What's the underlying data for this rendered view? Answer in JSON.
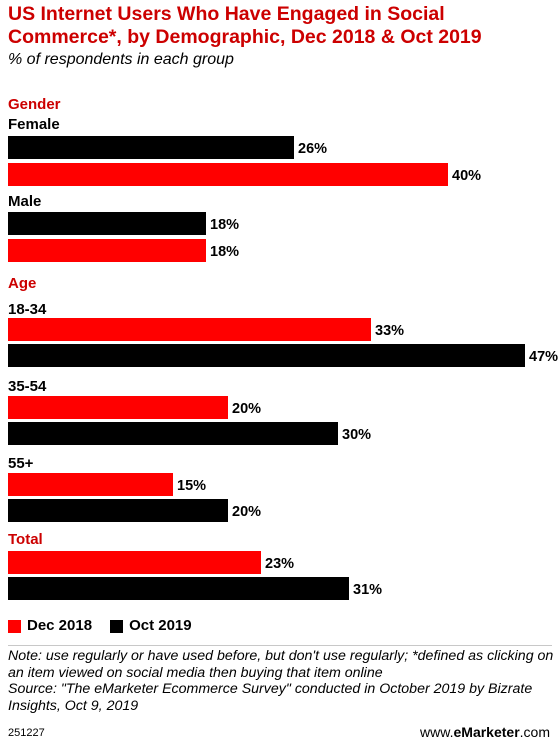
{
  "chart_data": {
    "type": "bar",
    "orientation": "horizontal",
    "title": "US Internet Users Who Have Engaged in Social Commerce*, by Demographic, Dec 2018 & Oct 2019",
    "subtitle": "% of respondents in each group",
    "xlim": [
      0,
      47
    ],
    "grid": false,
    "legend_position": "bottom-left",
    "groups": [
      {
        "heading": "Gender",
        "categories": [
          {
            "label": "Female",
            "bars": [
              {
                "series": "Oct 2019",
                "value": 26,
                "label": "26%"
              },
              {
                "series": "Dec 2018",
                "value": 40,
                "label": "40%"
              }
            ]
          },
          {
            "label": "Male",
            "bars": [
              {
                "series": "Oct 2019",
                "value": 18,
                "label": "18%"
              },
              {
                "series": "Dec 2018",
                "value": 18,
                "label": "18%"
              }
            ]
          }
        ]
      },
      {
        "heading": "Age",
        "categories": [
          {
            "label": "18-34",
            "bars": [
              {
                "series": "Dec 2018",
                "value": 33,
                "label": "33%"
              },
              {
                "series": "Oct 2019",
                "value": 47,
                "label": "47%"
              }
            ]
          },
          {
            "label": "35-54",
            "bars": [
              {
                "series": "Dec 2018",
                "value": 20,
                "label": "20%"
              },
              {
                "series": "Oct 2019",
                "value": 30,
                "label": "30%"
              }
            ]
          },
          {
            "label": "55+",
            "bars": [
              {
                "series": "Dec 2018",
                "value": 15,
                "label": "15%"
              },
              {
                "series": "Oct 2019",
                "value": 20,
                "label": "20%"
              }
            ]
          }
        ]
      },
      {
        "heading": "Total",
        "categories": [
          {
            "label": "",
            "bars": [
              {
                "series": "Dec 2018",
                "value": 23,
                "label": "23%"
              },
              {
                "series": "Oct 2019",
                "value": 31,
                "label": "31%"
              }
            ]
          }
        ]
      }
    ],
    "series": [
      {
        "name": "Dec 2018",
        "color": "#ff0000"
      },
      {
        "name": "Oct 2019",
        "color": "#000000"
      }
    ]
  },
  "colors": {
    "accent": "#cc0000"
  },
  "legend": {
    "dec_2018": "Dec 2018",
    "oct_2019": "Oct 2019"
  },
  "note": "Note: use regularly or have used before, but don't use regularly; *defined as clicking on an item viewed on social media then buying that item online",
  "source": "Source: \"The eMarketer Ecommerce Survey\" conducted in October 2019 by Bizrate Insights, Oct 9, 2019",
  "footer": {
    "id": "251227",
    "brand_prefix": "www.",
    "brand_name": "eMarketer",
    "brand_suffix": ".com"
  }
}
